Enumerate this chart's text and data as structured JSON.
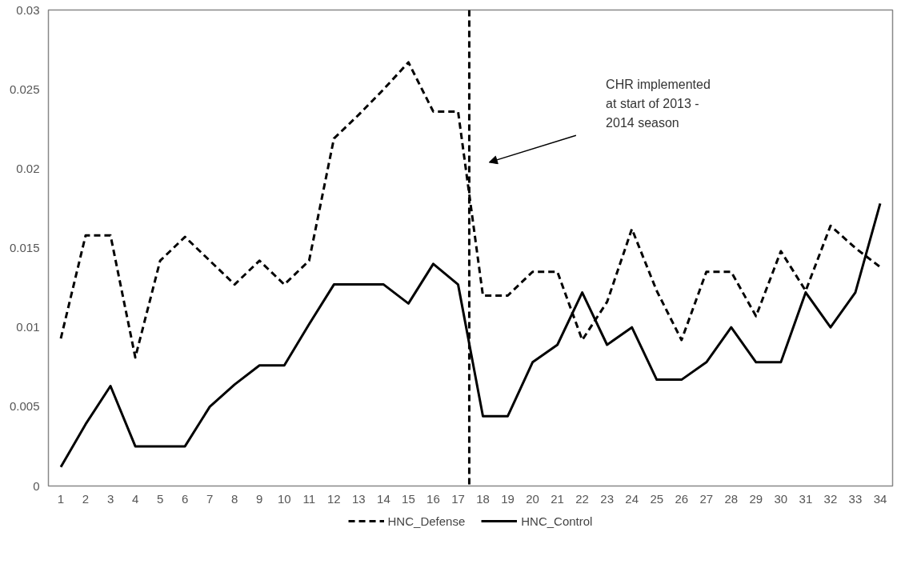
{
  "chart_data": {
    "type": "line",
    "x": [
      1,
      2,
      3,
      4,
      5,
      6,
      7,
      8,
      9,
      10,
      11,
      12,
      13,
      14,
      15,
      16,
      17,
      18,
      19,
      20,
      21,
      22,
      23,
      24,
      25,
      26,
      27,
      28,
      29,
      30,
      31,
      32,
      33,
      34
    ],
    "xlim": [
      0.5,
      34.5
    ],
    "xticks": [
      1,
      2,
      3,
      4,
      5,
      6,
      7,
      8,
      9,
      10,
      11,
      12,
      13,
      14,
      15,
      16,
      17,
      18,
      19,
      20,
      21,
      22,
      23,
      24,
      25,
      26,
      27,
      28,
      29,
      30,
      31,
      32,
      33,
      34
    ],
    "ylim": [
      0,
      0.03
    ],
    "yticks": [
      0,
      0.005,
      0.01,
      0.015,
      0.02,
      0.025,
      0.03
    ],
    "grid": false,
    "legend": "bottom",
    "marker": "none",
    "series": [
      {
        "name": "HNC_Defense",
        "color": "#000000",
        "line_style": "dashed",
        "values": [
          0.0093,
          0.0158,
          0.0158,
          0.0081,
          0.0142,
          0.0157,
          0.0142,
          0.0127,
          0.0142,
          0.0127,
          0.0142,
          0.0219,
          0.0234,
          0.025,
          0.0267,
          0.0236,
          0.0236,
          0.012,
          0.012,
          0.0135,
          0.0135,
          0.0092,
          0.0116,
          0.0162,
          0.0123,
          0.0092,
          0.0135,
          0.0135,
          0.0107,
          0.0148,
          0.0123,
          0.0164,
          0.015,
          0.0138
        ]
      },
      {
        "name": "HNC_Control",
        "color": "#000000",
        "line_style": "solid",
        "values": [
          0.0012,
          0.0039,
          0.0063,
          0.0025,
          0.0025,
          0.0025,
          0.005,
          0.0064,
          0.0076,
          0.0076,
          0.0102,
          0.0127,
          0.0127,
          0.0127,
          0.0115,
          0.014,
          0.0127,
          0.0044,
          0.0044,
          0.0078,
          0.0089,
          0.0122,
          0.0089,
          0.01,
          0.0067,
          0.0067,
          0.0078,
          0.01,
          0.0078,
          0.0078,
          0.0122,
          0.01,
          0.0122,
          0.0178
        ]
      }
    ],
    "ref_lines": [
      {
        "axis": "x",
        "value": 17.45,
        "label": null,
        "color": "#000000",
        "line_style": "dashed"
      }
    ],
    "annotations": [
      "CHR implemented\nat start of 2013 -\n2014 season"
    ]
  }
}
